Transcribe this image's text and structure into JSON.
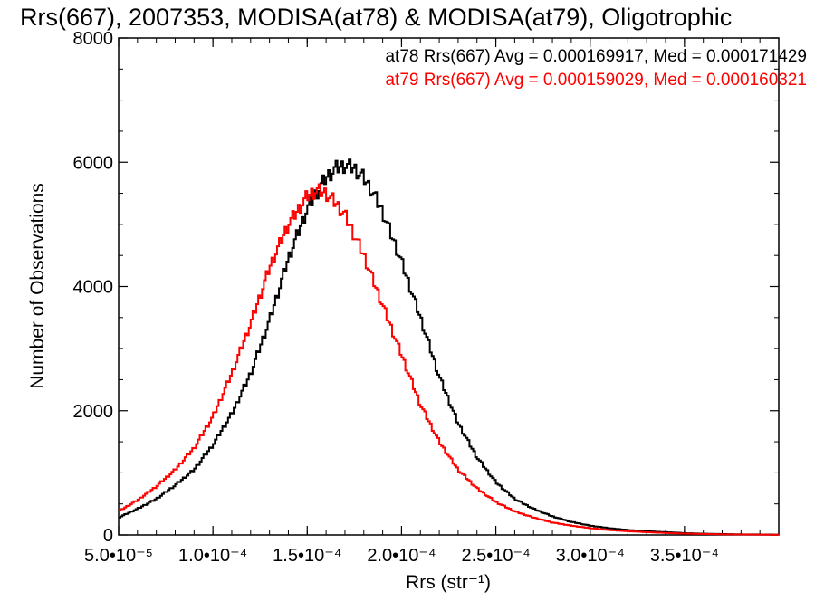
{
  "chart_data": {
    "type": "line",
    "title": "Rrs(667), 2007353, MODISA(at78) & MODISA(at79), Oligotrophic",
    "xlabel": "Rrs (str⁻¹)",
    "ylabel": "Number of Observations",
    "xlim": [
      5e-05,
      0.0004
    ],
    "ylim": [
      0,
      8000
    ],
    "x_ticks": [
      5e-05,
      0.0001,
      0.00015,
      0.0002,
      0.00025,
      0.0003,
      0.00035
    ],
    "x_tick_labels": [
      "5.0•10⁻⁵",
      "1.0•10⁻⁴",
      "1.5•10⁻⁴",
      "2.0•10⁻⁴",
      "2.5•10⁻⁴",
      "3.0•10⁻⁴",
      "3.5•10⁻⁴"
    ],
    "y_ticks": [
      0,
      2000,
      4000,
      6000,
      8000
    ],
    "y_tick_labels": [
      "0",
      "2000",
      "4000",
      "6000",
      "8000"
    ],
    "grid": false,
    "legend_position": "top-right",
    "series": [
      {
        "name": "at78",
        "color": "#000000",
        "stats_label": "at78 Rrs(667) Avg = 0.000169917, Med = 0.000171429",
        "x": [
          5e-05,
          6e-05,
          7e-05,
          8e-05,
          9e-05,
          0.0001,
          0.00011,
          0.00012,
          0.00013,
          0.00014,
          0.00015,
          0.00016,
          0.000165,
          0.00017,
          0.000175,
          0.00018,
          0.000185,
          0.00019,
          0.0002,
          0.00021,
          0.00022,
          0.00023,
          0.00024,
          0.00025,
          0.00026,
          0.00027,
          0.00028,
          0.00029,
          0.0003,
          0.00031,
          0.00032,
          0.00033,
          0.00034,
          0.00035,
          0.00036,
          0.00037,
          0.00038,
          0.00039,
          0.0004
        ],
        "y": [
          280,
          420,
          580,
          800,
          1050,
          1450,
          1950,
          2600,
          3450,
          4450,
          5250,
          5750,
          5900,
          5950,
          5900,
          5750,
          5500,
          5200,
          4400,
          3500,
          2550,
          1800,
          1250,
          850,
          580,
          420,
          300,
          210,
          150,
          110,
          80,
          60,
          45,
          30,
          20,
          15,
          10,
          8,
          5
        ]
      },
      {
        "name": "at79",
        "color": "#ff0000",
        "stats_label": "at79 Rrs(667) Avg = 0.000159029, Med = 0.000160321",
        "x": [
          5e-05,
          6e-05,
          7e-05,
          8e-05,
          9e-05,
          0.0001,
          0.00011,
          0.00012,
          0.00013,
          0.00014,
          0.00015,
          0.000155,
          0.00016,
          0.000165,
          0.00017,
          0.00018,
          0.00019,
          0.0002,
          0.00021,
          0.00022,
          0.00023,
          0.00024,
          0.00025,
          0.00026,
          0.00027,
          0.00028,
          0.00029,
          0.0003,
          0.00031,
          0.00032,
          0.00033,
          0.00034,
          0.00035,
          0.00036,
          0.00037,
          0.00038,
          0.00039,
          0.0004
        ],
        "y": [
          380,
          560,
          780,
          1050,
          1400,
          1900,
          2600,
          3400,
          4300,
          5000,
          5450,
          5550,
          5500,
          5350,
          5150,
          4500,
          3700,
          2900,
          2100,
          1500,
          1050,
          750,
          530,
          380,
          280,
          200,
          150,
          110,
          80,
          60,
          45,
          32,
          22,
          15,
          10,
          7,
          5,
          3
        ]
      }
    ]
  }
}
